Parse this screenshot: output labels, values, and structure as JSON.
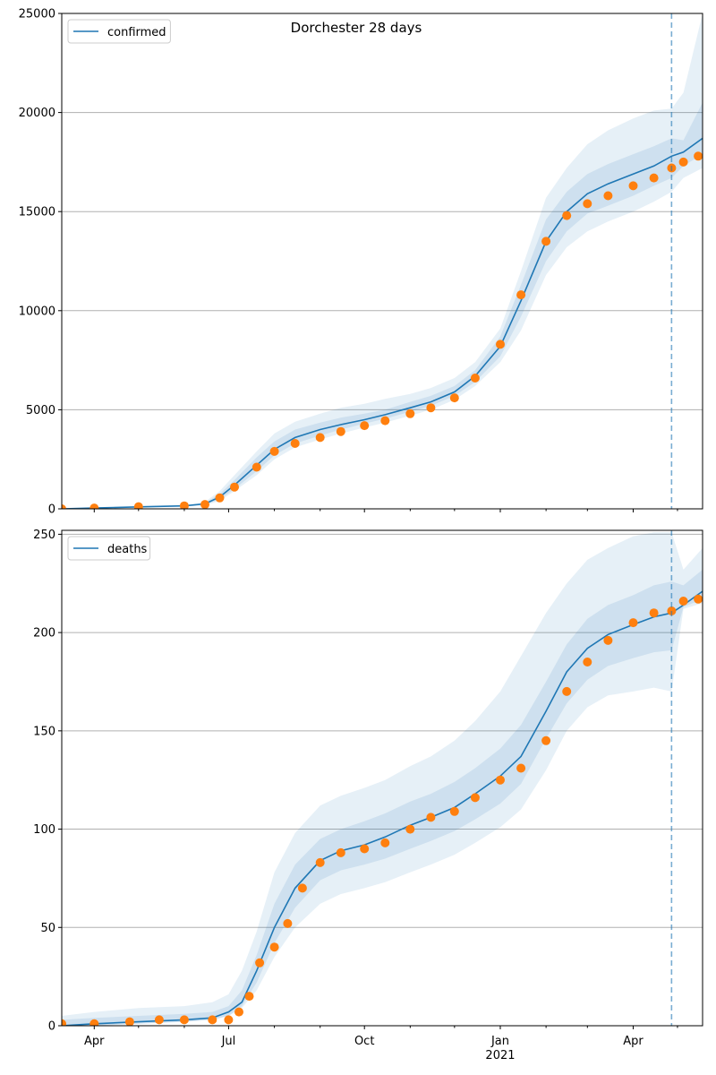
{
  "figure": {
    "title": "Dorchester 28 days"
  },
  "colors": {
    "model": "#1f77b4",
    "observed": "#ff7f0e",
    "band": "#1f77b4",
    "grid": "#b0b0b0",
    "forecast_line": "#1f77b4"
  },
  "x_axis": {
    "start": "2020-03-10",
    "end": "2021-05-18",
    "forecast_date": "2021-04-27",
    "major_ticks": [
      {
        "date": "2020-04-01",
        "label": "Apr",
        "sublabel": ""
      },
      {
        "date": "2020-07-01",
        "label": "Jul",
        "sublabel": ""
      },
      {
        "date": "2020-10-01",
        "label": "Oct",
        "sublabel": ""
      },
      {
        "date": "2021-01-01",
        "label": "Jan",
        "sublabel": "2021"
      },
      {
        "date": "2021-04-01",
        "label": "Apr",
        "sublabel": ""
      }
    ]
  },
  "chart_data": [
    {
      "type": "line",
      "legend": "confirmed",
      "legend_position": "top-left",
      "ylim": [
        0,
        25000
      ],
      "yticks": [
        0,
        5000,
        10000,
        15000,
        20000,
        25000
      ],
      "grid": true,
      "model": {
        "x": [
          "2020-03-10",
          "2020-04-01",
          "2020-05-01",
          "2020-06-01",
          "2020-06-15",
          "2020-06-25",
          "2020-07-05",
          "2020-07-20",
          "2020-08-01",
          "2020-08-15",
          "2020-09-01",
          "2020-09-15",
          "2020-10-01",
          "2020-10-15",
          "2020-11-01",
          "2020-11-15",
          "2020-12-01",
          "2020-12-15",
          "2021-01-01",
          "2021-01-15",
          "2021-02-01",
          "2021-02-15",
          "2021-03-01",
          "2021-03-15",
          "2021-04-01",
          "2021-04-15",
          "2021-04-27",
          "2021-05-05",
          "2021-05-18"
        ],
        "y": [
          0,
          40,
          100,
          150,
          250,
          600,
          1200,
          2200,
          3000,
          3600,
          4000,
          4250,
          4500,
          4750,
          5100,
          5400,
          5900,
          6700,
          8200,
          10500,
          13500,
          15000,
          15900,
          16400,
          16900,
          17300,
          17800,
          18000,
          18700
        ],
        "band_outer": [
          [
            0,
            0
          ],
          [
            30,
            60
          ],
          [
            80,
            130
          ],
          [
            120,
            200
          ],
          [
            180,
            350
          ],
          [
            400,
            900
          ],
          [
            900,
            1700
          ],
          [
            1700,
            2900
          ],
          [
            2500,
            3800
          ],
          [
            3100,
            4400
          ],
          [
            3500,
            4800
          ],
          [
            3800,
            5100
          ],
          [
            4100,
            5300
          ],
          [
            4350,
            5550
          ],
          [
            4700,
            5800
          ],
          [
            5000,
            6100
          ],
          [
            5500,
            6600
          ],
          [
            6200,
            7400
          ],
          [
            7400,
            9100
          ],
          [
            9000,
            12000
          ],
          [
            11800,
            15700
          ],
          [
            13200,
            17200
          ],
          [
            14000,
            18400
          ],
          [
            14500,
            19100
          ],
          [
            15000,
            19700
          ],
          [
            15500,
            20100
          ],
          [
            16000,
            20200
          ],
          [
            16700,
            21000
          ],
          [
            17200,
            25000
          ]
        ],
        "band_mid": [
          [
            0,
            0
          ],
          [
            35,
            50
          ],
          [
            90,
            115
          ],
          [
            135,
            170
          ],
          [
            210,
            300
          ],
          [
            480,
            750
          ],
          [
            1000,
            1450
          ],
          [
            1900,
            2600
          ],
          [
            2700,
            3400
          ],
          [
            3300,
            4000
          ],
          [
            3700,
            4350
          ],
          [
            4000,
            4600
          ],
          [
            4300,
            4800
          ],
          [
            4550,
            5000
          ],
          [
            4900,
            5400
          ],
          [
            5200,
            5700
          ],
          [
            5700,
            6200
          ],
          [
            6400,
            7000
          ],
          [
            7700,
            8700
          ],
          [
            9700,
            11300
          ],
          [
            12500,
            14600
          ],
          [
            14000,
            16000
          ],
          [
            14900,
            16900
          ],
          [
            15300,
            17400
          ],
          [
            15800,
            17900
          ],
          [
            16300,
            18300
          ],
          [
            16700,
            18700
          ],
          [
            17300,
            18600
          ],
          [
            17900,
            20500
          ]
        ]
      },
      "observed": {
        "x": [
          "2020-03-10",
          "2020-04-01",
          "2020-05-01",
          "2020-06-01",
          "2020-06-15",
          "2020-06-25",
          "2020-07-05",
          "2020-07-20",
          "2020-08-01",
          "2020-08-15",
          "2020-09-01",
          "2020-09-15",
          "2020-10-01",
          "2020-10-15",
          "2020-11-01",
          "2020-11-15",
          "2020-12-01",
          "2020-12-15",
          "2021-01-01",
          "2021-01-15",
          "2021-02-01",
          "2021-02-15",
          "2021-03-01",
          "2021-03-15",
          "2021-04-01",
          "2021-04-15",
          "2021-04-27",
          "2021-05-05",
          "2021-05-15"
        ],
        "y": [
          0,
          40,
          110,
          150,
          220,
          550,
          1100,
          2100,
          2900,
          3300,
          3600,
          3900,
          4200,
          4450,
          4800,
          5100,
          5600,
          6600,
          8300,
          10800,
          13500,
          14800,
          15400,
          15800,
          16300,
          16700,
          17200,
          17500,
          17800
        ]
      }
    },
    {
      "type": "line",
      "legend": "deaths",
      "legend_position": "top-left",
      "ylim": [
        0,
        252
      ],
      "yticks": [
        0,
        50,
        100,
        150,
        200,
        250
      ],
      "grid": true,
      "model": {
        "x": [
          "2020-03-10",
          "2020-04-01",
          "2020-05-01",
          "2020-06-01",
          "2020-06-20",
          "2020-07-01",
          "2020-07-10",
          "2020-07-20",
          "2020-08-01",
          "2020-08-15",
          "2020-09-01",
          "2020-09-15",
          "2020-10-01",
          "2020-10-15",
          "2020-11-01",
          "2020-11-15",
          "2020-12-01",
          "2020-12-15",
          "2021-01-01",
          "2021-01-15",
          "2021-02-01",
          "2021-02-15",
          "2021-03-01",
          "2021-03-15",
          "2021-04-01",
          "2021-04-15",
          "2021-04-27",
          "2021-05-05",
          "2021-05-18"
        ],
        "y": [
          0,
          1,
          2,
          3,
          4,
          7,
          12,
          28,
          50,
          70,
          84,
          89,
          92,
          96,
          102,
          106,
          111,
          118,
          127,
          137,
          160,
          180,
          192,
          199,
          204,
          208,
          210,
          214,
          221
        ],
        "band_outer": [
          [
            0,
            5
          ],
          [
            0,
            7
          ],
          [
            1,
            9
          ],
          [
            2,
            10
          ],
          [
            3,
            12
          ],
          [
            5,
            16
          ],
          [
            9,
            28
          ],
          [
            18,
            48
          ],
          [
            35,
            78
          ],
          [
            50,
            98
          ],
          [
            62,
            112
          ],
          [
            67,
            117
          ],
          [
            70,
            121
          ],
          [
            73,
            125
          ],
          [
            78,
            132
          ],
          [
            82,
            137
          ],
          [
            87,
            145
          ],
          [
            93,
            155
          ],
          [
            101,
            170
          ],
          [
            110,
            188
          ],
          [
            130,
            210
          ],
          [
            150,
            225
          ],
          [
            162,
            237
          ],
          [
            168,
            243
          ],
          [
            170,
            249
          ],
          [
            172,
            251
          ],
          [
            170,
            251
          ],
          [
            212,
            232
          ],
          [
            215,
            243
          ]
        ],
        "band_mid": [
          [
            0,
            3
          ],
          [
            0,
            4
          ],
          [
            1,
            5
          ],
          [
            2,
            6
          ],
          [
            3,
            7
          ],
          [
            5,
            10
          ],
          [
            10,
            18
          ],
          [
            22,
            36
          ],
          [
            42,
            62
          ],
          [
            60,
            82
          ],
          [
            74,
            95
          ],
          [
            79,
            100
          ],
          [
            82,
            104
          ],
          [
            85,
            108
          ],
          [
            90,
            114
          ],
          [
            94,
            118
          ],
          [
            99,
            124
          ],
          [
            105,
            131
          ],
          [
            113,
            141
          ],
          [
            123,
            153
          ],
          [
            146,
            175
          ],
          [
            164,
            194
          ],
          [
            176,
            207
          ],
          [
            183,
            214
          ],
          [
            187,
            219
          ],
          [
            190,
            224
          ],
          [
            191,
            226
          ],
          [
            213,
            224
          ],
          [
            217,
            232
          ]
        ]
      },
      "observed": {
        "x": [
          "2020-03-10",
          "2020-04-01",
          "2020-04-25",
          "2020-05-15",
          "2020-06-01",
          "2020-06-20",
          "2020-07-01",
          "2020-07-08",
          "2020-07-15",
          "2020-07-22",
          "2020-08-01",
          "2020-08-10",
          "2020-08-20",
          "2020-09-01",
          "2020-09-15",
          "2020-10-01",
          "2020-10-15",
          "2020-11-01",
          "2020-11-15",
          "2020-12-01",
          "2020-12-15",
          "2021-01-01",
          "2021-01-15",
          "2021-02-01",
          "2021-02-15",
          "2021-03-01",
          "2021-03-15",
          "2021-04-01",
          "2021-04-15",
          "2021-04-27",
          "2021-05-05",
          "2021-05-15"
        ],
        "y": [
          1,
          1,
          2,
          3,
          3,
          3,
          3,
          7,
          15,
          32,
          40,
          52,
          70,
          83,
          88,
          90,
          93,
          100,
          106,
          109,
          116,
          125,
          131,
          145,
          170,
          185,
          196,
          205,
          210,
          211,
          216,
          217
        ]
      }
    }
  ]
}
